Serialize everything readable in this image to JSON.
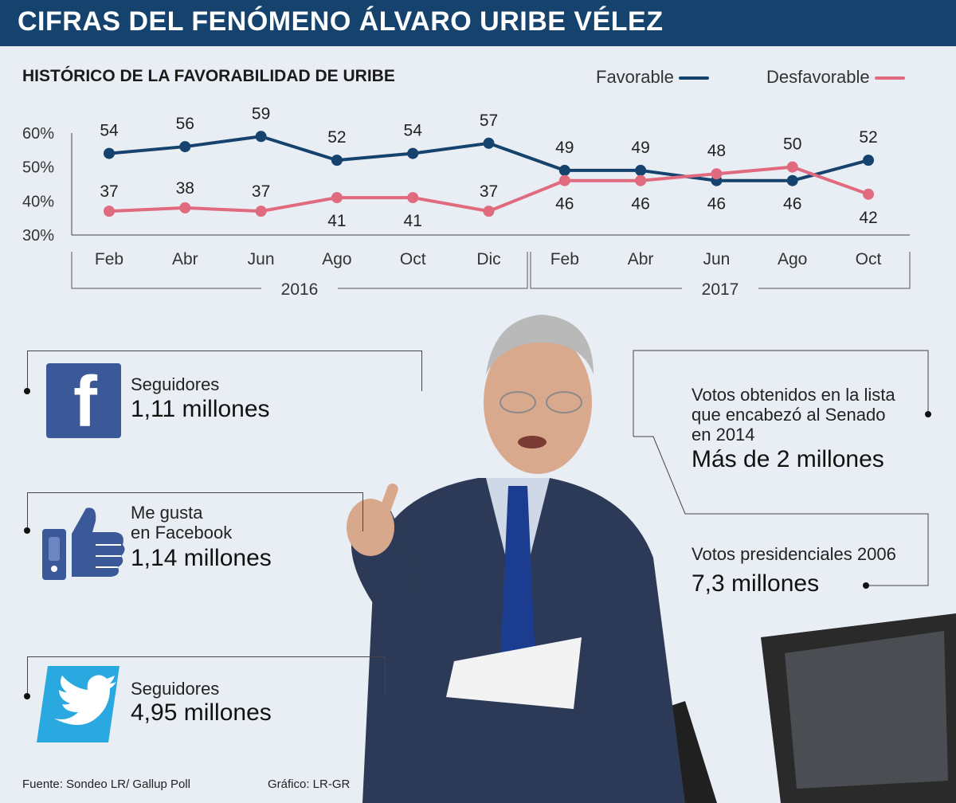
{
  "header": {
    "title": "CIFRAS DEL FENÓMENO ÁLVARO URIBE VÉLEZ"
  },
  "chart_data": {
    "type": "line",
    "title": "HISTÓRICO DE LA FAVORABILIDAD DE URIBE",
    "categories": [
      "Feb",
      "Abr",
      "Jun",
      "Ago",
      "Oct",
      "Dic",
      "Feb",
      "Abr",
      "Jun",
      "Ago",
      "Oct"
    ],
    "groups": [
      {
        "label": "2016",
        "from": 0,
        "to": 5
      },
      {
        "label": "2017",
        "from": 6,
        "to": 10
      }
    ],
    "series": [
      {
        "name": "Favorable",
        "color": "#15436d",
        "values": [
          54,
          56,
          59,
          52,
          54,
          57,
          49,
          49,
          46,
          46,
          52
        ]
      },
      {
        "name": "Desfavorable",
        "color": "#e06a7e",
        "values": [
          37,
          38,
          37,
          41,
          41,
          37,
          46,
          46,
          48,
          50,
          42
        ]
      }
    ],
    "ylim": [
      30,
      60
    ],
    "yticks": [
      "60%",
      "50%",
      "40%",
      "30%"
    ],
    "grid": false,
    "legend": "top-right"
  },
  "stats": {
    "facebook": {
      "icon": "facebook-icon",
      "label": "Seguidores",
      "value": "1,11 millones"
    },
    "likes": {
      "icon": "thumbs-up-icon",
      "label1": "Me gusta",
      "label2": "en Facebook",
      "value": "1,14 millones"
    },
    "twitter": {
      "icon": "twitter-bird-icon",
      "label": "Seguidores",
      "value": "4,95 millones"
    },
    "senate": {
      "label1": "Votos obtenidos en la lista",
      "label2": "que encabezó al Senado",
      "label3": "en 2014",
      "value": "Más de 2 millones"
    },
    "presidential": {
      "label": "Votos presidenciales 2006",
      "value": "7,3 millones"
    }
  },
  "footer": {
    "source": "Fuente: Sondeo LR/ Gallup Poll",
    "credit": "Gráfico: LR-GR"
  },
  "colors": {
    "header": "#15436d",
    "favorable": "#15436d",
    "desfavorable": "#e06a7e",
    "facebook": "#3b5998",
    "twitter": "#2aa9e0"
  }
}
